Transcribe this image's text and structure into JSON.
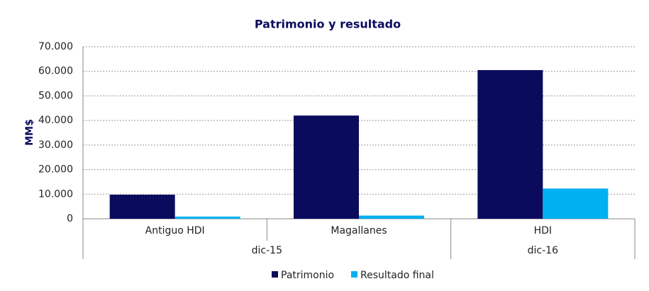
{
  "chart_data": {
    "type": "bar",
    "title": "Patrimonio y resultado",
    "y_label": "MM$",
    "categories": [
      "Antiguo HDI",
      "Magallanes",
      "HDI"
    ],
    "x_groups": [
      "dic-15",
      "dic-15",
      "dic-16"
    ],
    "series": [
      {
        "name": "Patrimonio",
        "color": "#0b0b5e",
        "values": [
          9800,
          42000,
          60500
        ]
      },
      {
        "name": "Resultado final",
        "color": "#00b0f0",
        "values": [
          900,
          1300,
          12300
        ]
      }
    ],
    "ylim": [
      0,
      70000
    ],
    "yticks": [
      0,
      {
        "value": 10000,
        "label": "10.000"
      },
      {
        "value": 20000,
        "label": "20.000"
      },
      {
        "value": 30000,
        "label": "30.000"
      },
      {
        "value": 40000,
        "label": "40.000"
      },
      {
        "value": 50000,
        "label": "50.000"
      },
      {
        "value": 60000,
        "label": "60.000"
      },
      {
        "value": 70000,
        "label": "70.000"
      }
    ],
    "grid": true,
    "legend": "bottom"
  }
}
